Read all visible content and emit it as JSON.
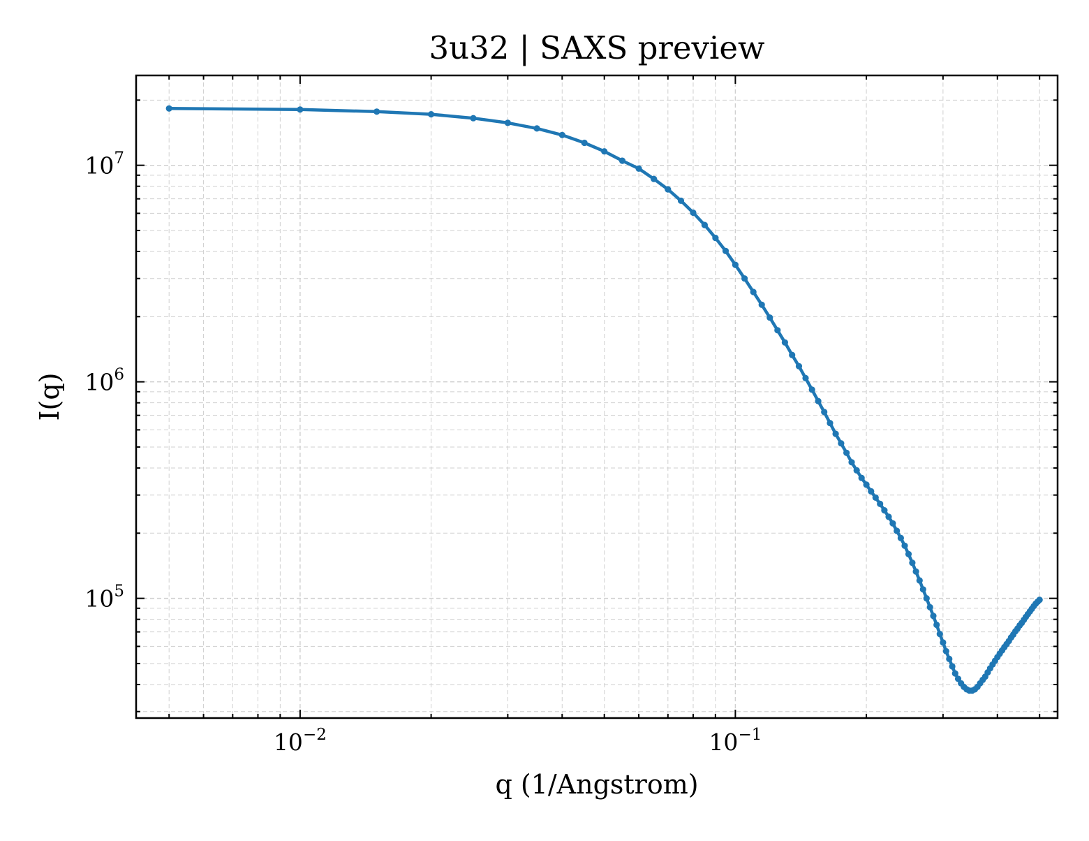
{
  "chart_data": {
    "type": "line",
    "title": "3u32 | SAXS preview",
    "xlabel": "q (1/Angstrom)",
    "ylabel": "I(q)",
    "xscale": "log",
    "yscale": "log",
    "xlim": [
      0.0042,
      0.55
    ],
    "ylim": [
      28000,
      26000000
    ],
    "grid": true,
    "legend": "none",
    "x_tick_labels": [
      {
        "value": 0.01,
        "base": "10",
        "exp": "−2"
      },
      {
        "value": 0.1,
        "base": "10",
        "exp": "−1"
      }
    ],
    "y_tick_labels": [
      {
        "value": 100000,
        "base": "10",
        "exp": "5"
      },
      {
        "value": 1000000,
        "base": "10",
        "exp": "6"
      },
      {
        "value": 10000000,
        "base": "10",
        "exp": "7"
      }
    ],
    "colors": {
      "line": "#1f77b4"
    },
    "series": [
      {
        "x": [
          0.005,
          0.01,
          0.015,
          0.02,
          0.025,
          0.03,
          0.035,
          0.04,
          0.045,
          0.05,
          0.055,
          0.06,
          0.065,
          0.07,
          0.075,
          0.08,
          0.085,
          0.09,
          0.095,
          0.1,
          0.105,
          0.11,
          0.115,
          0.12,
          0.125,
          0.13,
          0.135,
          0.14,
          0.145,
          0.15,
          0.155,
          0.16,
          0.165,
          0.17,
          0.175,
          0.18,
          0.185,
          0.19,
          0.195,
          0.2,
          0.205,
          0.21,
          0.215,
          0.22,
          0.225,
          0.23,
          0.235,
          0.24,
          0.245,
          0.25,
          0.255,
          0.26,
          0.265,
          0.27,
          0.275,
          0.28,
          0.285,
          0.29,
          0.295,
          0.3,
          0.305,
          0.31,
          0.315,
          0.32,
          0.325,
          0.33,
          0.335,
          0.34,
          0.345,
          0.35,
          0.355,
          0.36,
          0.365,
          0.37,
          0.375,
          0.38,
          0.385,
          0.39,
          0.395,
          0.4,
          0.405,
          0.41,
          0.415,
          0.42,
          0.425,
          0.43,
          0.435,
          0.44,
          0.445,
          0.45,
          0.455,
          0.46,
          0.465,
          0.47,
          0.475,
          0.48,
          0.485,
          0.49,
          0.495,
          0.5
        ],
        "y": [
          18300000,
          18100000,
          17700000,
          17200000,
          16500000,
          15700000,
          14800000,
          13800000,
          12700000,
          11600000,
          10500000,
          9650000,
          8650000,
          7740000,
          6860000,
          6040000,
          5300000,
          4620000,
          4020000,
          3470000,
          3000000,
          2600000,
          2270000,
          1980000,
          1730000,
          1520000,
          1330000,
          1180000,
          1040000,
          920000,
          815000,
          725000,
          645000,
          575000,
          520000,
          470000,
          425000,
          390000,
          360000,
          335000,
          312000,
          292000,
          273000,
          255000,
          238000,
          222000,
          205000,
          190000,
          175000,
          160000,
          146000,
          133000,
          121000,
          110000,
          100000,
          91000,
          83000,
          75500,
          68500,
          62500,
          57000,
          52500,
          48500,
          45000,
          42500,
          40500,
          39000,
          38000,
          37500,
          37500,
          38000,
          39000,
          40500,
          42000,
          43500,
          45500,
          47500,
          49500,
          51500,
          53500,
          55500,
          57500,
          59500,
          61500,
          63500,
          66000,
          68000,
          70500,
          72500,
          75000,
          77000,
          79500,
          82000,
          84500,
          87000,
          89500,
          92000,
          94500,
          96500,
          98500
        ]
      }
    ]
  }
}
